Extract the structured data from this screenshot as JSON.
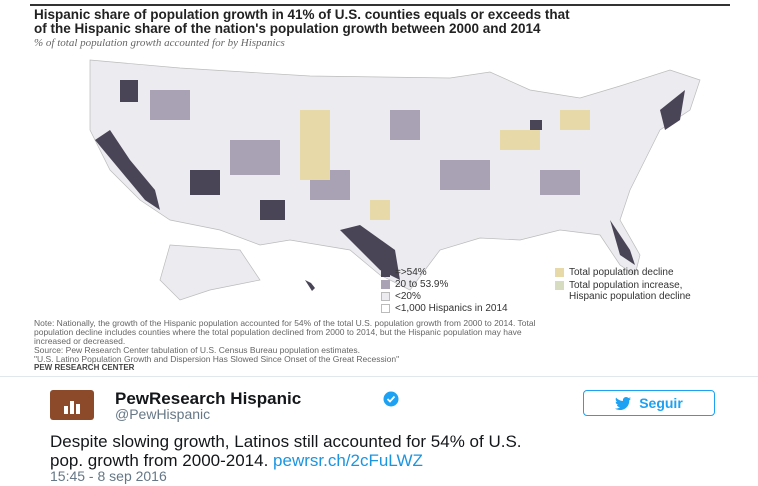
{
  "graphic": {
    "title": [
      "Hispanic share of population growth in 41% of U.S. counties equals or exceeds that",
      "of the Hispanic share of the nation's population growth between 2000 and 2014"
    ],
    "subtitle": "% of total population growth accounted for by Hispanics",
    "legend": [
      {
        "lines": [
          "=>54%"
        ]
      },
      {
        "lines": [
          "20 to 53.9%"
        ]
      },
      {
        "lines": [
          "<20%"
        ]
      },
      {
        "lines": [
          "<1,000 Hispanics in 2014"
        ]
      },
      {
        "lines": [
          "Total population decline"
        ]
      },
      {
        "lines": [
          "Total population increase,",
          "Hispanic population decline"
        ]
      }
    ],
    "note": [
      "Note: Nationally, the growth of the Hispanic population accounted for 54% of the total U.S. population growth from 2000 to 2014. Total",
      "population decline includes counties where the total population declined from 2000 to 2014, but the Hispanic population may have",
      "increased or decreased.",
      "Source: Pew Research Center tabulation of U.S. Census Bureau population estimates.",
      "\"U.S. Latino Population Growth and Dispersion Has Slowed Since Onset of the Great Recession\""
    ],
    "credit": "PEW RESEARCH CENTER"
  },
  "tweet": {
    "author": "PewResearch Hispanic",
    "handle": "@PewHispanic",
    "follow": "Seguir",
    "text": [
      "Despite slowing growth, Latinos still accounted for 54% of U.S.",
      "pop. growth from 2000-2014."
    ],
    "link": "pewrsr.ch/2cFuLWZ",
    "timestamp": "15:45 - 8 sep 2016"
  }
}
